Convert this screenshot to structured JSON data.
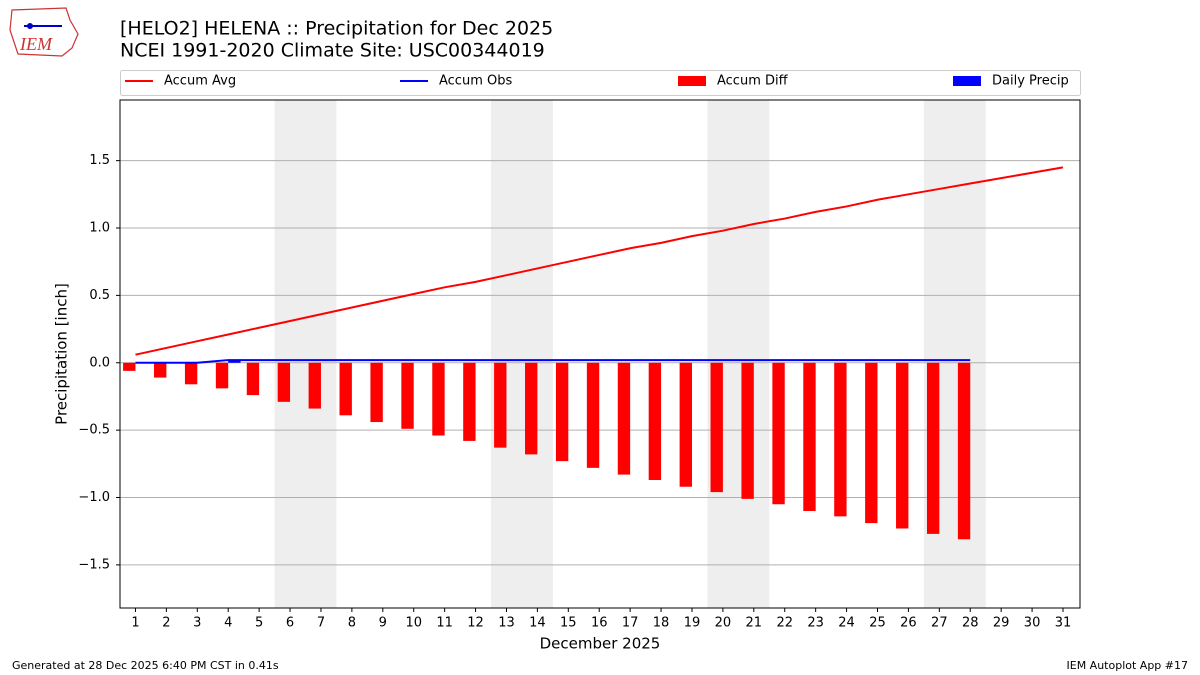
{
  "logo_text": "IEM",
  "footer_left": "Generated at 28 Dec 2025 6:40 PM CST in 0.41s",
  "footer_right": "IEM Autoplot App #17",
  "chart_data": {
    "type": "combo",
    "title": "[HELO2] HELENA :: Precipitation for Dec 2025",
    "subtitle": "NCEI 1991-2020 Climate Site: USC00344019",
    "xlabel": "December 2025",
    "ylabel": "Precipitation [inch]",
    "x": [
      1,
      2,
      3,
      4,
      5,
      6,
      7,
      8,
      9,
      10,
      11,
      12,
      13,
      14,
      15,
      16,
      17,
      18,
      19,
      20,
      21,
      22,
      23,
      24,
      25,
      26,
      27,
      28,
      29,
      30,
      31
    ],
    "xlim": [
      0.5,
      31.55
    ],
    "xticks": [
      1,
      2,
      3,
      4,
      5,
      6,
      7,
      8,
      9,
      10,
      11,
      12,
      13,
      14,
      15,
      16,
      17,
      18,
      19,
      20,
      21,
      22,
      23,
      24,
      25,
      26,
      27,
      28,
      29,
      30,
      31
    ],
    "ylim": [
      -1.82,
      1.95
    ],
    "yticks": [
      {
        "value": -1.5,
        "label": "−1.5"
      },
      {
        "value": -1.0,
        "label": "−1.0"
      },
      {
        "value": -0.5,
        "label": "−0.5"
      },
      {
        "value": 0.0,
        "label": "0.0"
      },
      0.5,
      {
        "value": 1.0,
        "label": "1.0"
      },
      1.5
    ],
    "grid": true,
    "legend": "top",
    "weekend_spans": [
      [
        5.5,
        7.5
      ],
      [
        12.5,
        14.5
      ],
      [
        19.5,
        21.5
      ],
      [
        26.5,
        28.5
      ]
    ],
    "weekend_color": "#eeeeee",
    "series": [
      {
        "name": "Accum Avg",
        "kind": "line",
        "color": "#ff0000",
        "values": [
          0.06,
          0.11,
          0.16,
          0.21,
          0.26,
          0.31,
          0.36,
          0.41,
          0.46,
          0.51,
          0.56,
          0.6,
          0.65,
          0.7,
          0.75,
          0.8,
          0.85,
          0.89,
          0.94,
          0.98,
          1.03,
          1.07,
          1.12,
          1.16,
          1.21,
          1.25,
          1.29,
          1.33,
          1.37,
          1.41,
          1.45
        ]
      },
      {
        "name": "Accum Obs",
        "kind": "line",
        "color": "#0000ff",
        "values": [
          0,
          0,
          0,
          0.02,
          0.02,
          0.02,
          0.02,
          0.02,
          0.02,
          0.02,
          0.02,
          0.02,
          0.02,
          0.02,
          0.02,
          0.02,
          0.02,
          0.02,
          0.02,
          0.02,
          0.02,
          0.02,
          0.02,
          0.02,
          0.02,
          0.02,
          0.02,
          0.02,
          null,
          null,
          null
        ]
      },
      {
        "name": "Accum Diff",
        "kind": "bar",
        "color": "#ff0000",
        "values": [
          -0.06,
          -0.11,
          -0.16,
          -0.19,
          -0.24,
          -0.29,
          -0.34,
          -0.39,
          -0.44,
          -0.49,
          -0.54,
          -0.58,
          -0.63,
          -0.68,
          -0.73,
          -0.78,
          -0.83,
          -0.87,
          -0.92,
          -0.96,
          -1.01,
          -1.05,
          -1.1,
          -1.14,
          -1.19,
          -1.23,
          -1.27,
          -1.31,
          null,
          null,
          null
        ]
      },
      {
        "name": "Daily Precip",
        "kind": "bar",
        "color": "#0000ff",
        "values": [
          0,
          0,
          0,
          0.02,
          0,
          0,
          0,
          0,
          0,
          0,
          0,
          0,
          0,
          0,
          0,
          0,
          0,
          0,
          0,
          0,
          0,
          0,
          0,
          0,
          0,
          0,
          0,
          0,
          null,
          null,
          null
        ]
      }
    ]
  }
}
